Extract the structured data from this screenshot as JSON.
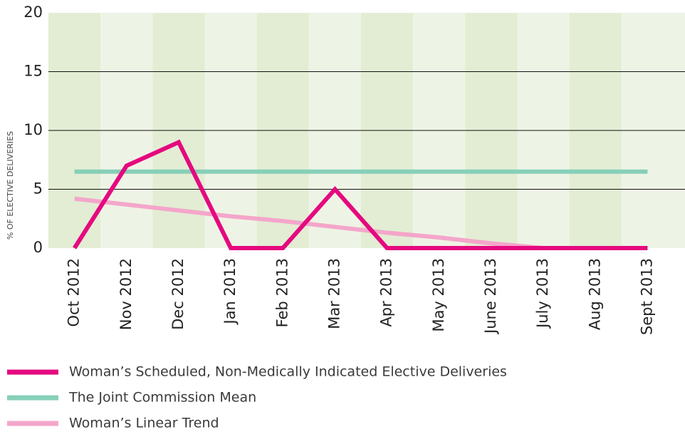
{
  "chart_data": {
    "type": "line",
    "ylabel": "% OF ELECTIVE DELIVERIES",
    "categories": [
      "Oct 2012",
      "Nov 2012",
      "Dec 2012",
      "Jan 2013",
      "Feb 2013",
      "Mar 2013",
      "Apr 2013",
      "May 2013",
      "June 2013",
      "July 2013",
      "Aug 2013",
      "Sept 2013"
    ],
    "series": [
      {
        "name": "Woman’s Scheduled, Non-Medically Indicated Elective Deliveries",
        "color": "#e5097f",
        "values": [
          0,
          7,
          9,
          0,
          0,
          5,
          0,
          0,
          0,
          0,
          0,
          0
        ]
      },
      {
        "name": "The Joint Commission Mean",
        "color": "#86cfb8",
        "values": [
          6.5,
          6.5,
          6.5,
          6.5,
          6.5,
          6.5,
          6.5,
          6.5,
          6.5,
          6.5,
          6.5,
          6.5
        ]
      },
      {
        "name": "Woman’s Linear Trend",
        "color": "#f4a6ca",
        "values": [
          4.2,
          3.7,
          3.2,
          2.7,
          2.3,
          1.8,
          1.3,
          0.9,
          0.4,
          0,
          0,
          0
        ]
      }
    ],
    "draw_order": [
      2,
      1,
      0
    ],
    "ylim": [
      0,
      20
    ],
    "yticks": [
      0,
      5,
      10,
      15,
      20
    ],
    "grid": true,
    "band_colors": [
      "#e3edd4",
      "#eef4e5"
    ]
  }
}
